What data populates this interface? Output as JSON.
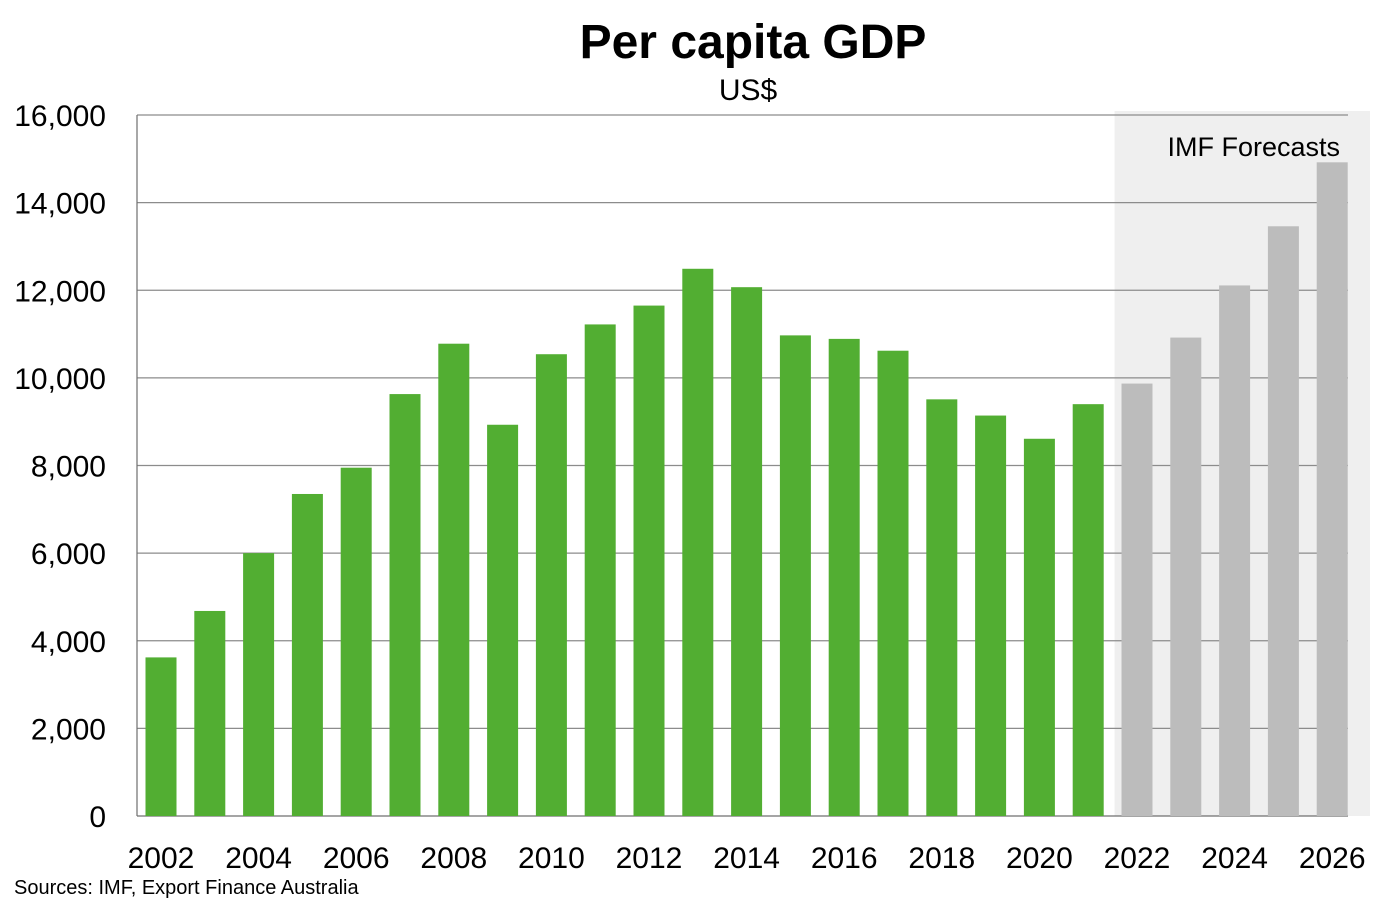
{
  "source_note": "Sources: IMF, Export Finance Australia",
  "colors": {
    "actual": "#52ae32",
    "forecast": "#bcbcbc",
    "forecast_region": "#efefef",
    "gridline": "#8c8c8c"
  },
  "chart_data": {
    "type": "bar",
    "title": "Per capita GDP",
    "subtitle": "US$",
    "xlabel": "",
    "ylabel": "",
    "ylim": [
      0,
      16000
    ],
    "yticks": [
      0,
      2000,
      4000,
      6000,
      8000,
      10000,
      12000,
      14000,
      16000
    ],
    "ytick_labels": [
      "0",
      "2,000",
      "4,000",
      "6,000",
      "8,000",
      "10,000",
      "12,000",
      "14,000",
      "16,000"
    ],
    "grid": true,
    "categories": [
      2002,
      2003,
      2004,
      2005,
      2006,
      2007,
      2008,
      2009,
      2010,
      2011,
      2012,
      2013,
      2014,
      2015,
      2016,
      2017,
      2018,
      2019,
      2020,
      2021,
      2022,
      2023,
      2024,
      2025,
      2026
    ],
    "xtick_labels": [
      "2002",
      "2004",
      "2006",
      "2008",
      "2010",
      "2012",
      "2014",
      "2016",
      "2018",
      "2020",
      "2022",
      "2024",
      "2026"
    ],
    "values": [
      3620,
      4680,
      6000,
      7350,
      7950,
      9630,
      10780,
      8930,
      10540,
      11220,
      11650,
      12490,
      12070,
      10970,
      10890,
      10620,
      9510,
      9140,
      8610,
      9400,
      9870,
      10920,
      12110,
      13460,
      14920
    ],
    "forecast_start": 2022,
    "annotation": "IMF Forecasts"
  }
}
